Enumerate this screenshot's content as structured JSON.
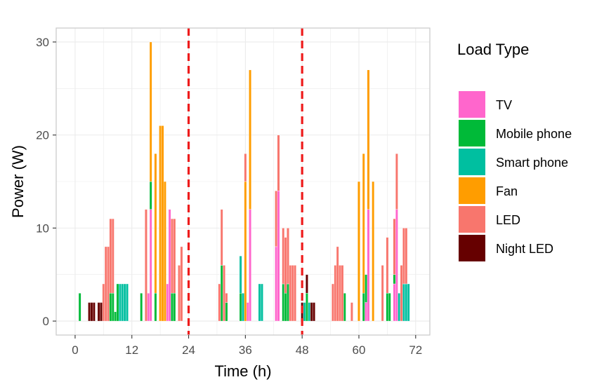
{
  "chart_data": {
    "type": "bar",
    "stacked": true,
    "title": "",
    "xlabel": "Time (h)",
    "ylabel": "Power (W)",
    "xlim": [
      -4,
      75
    ],
    "ylim": [
      -1.5,
      31.5
    ],
    "x_ticks": [
      0,
      12,
      24,
      36,
      48,
      60,
      72
    ],
    "y_ticks": [
      0,
      10,
      20,
      30
    ],
    "grid": true,
    "legend_title": "Load Type",
    "legend_position": "right",
    "vlines": [
      24,
      48
    ],
    "vline_color": "#ee1c1c",
    "series": [
      {
        "name": "TV",
        "color": "#ff66cc",
        "points": [
          [
            15.5,
            3
          ],
          [
            16,
            12
          ],
          [
            19.5,
            4
          ],
          [
            20,
            12
          ],
          [
            30.5,
            0
          ],
          [
            36.5,
            2
          ],
          [
            37,
            12
          ],
          [
            42.5,
            8
          ],
          [
            43,
            14
          ],
          [
            61.5,
            2
          ],
          [
            62,
            12
          ],
          [
            67.5,
            4
          ],
          [
            68,
            12
          ]
        ]
      },
      {
        "name": "Mobile phone",
        "color": "#00ba38",
        "points": [
          [
            1,
            3
          ],
          [
            7.5,
            3
          ],
          [
            8,
            3
          ],
          [
            8.5,
            1
          ],
          [
            9,
            4
          ],
          [
            14,
            3
          ],
          [
            16,
            3
          ],
          [
            17,
            3
          ],
          [
            20.5,
            3
          ],
          [
            21,
            3
          ],
          [
            31,
            6
          ],
          [
            32,
            2
          ],
          [
            35,
            3
          ],
          [
            44,
            4
          ],
          [
            44.5,
            3
          ],
          [
            45,
            4
          ],
          [
            49,
            3
          ],
          [
            57,
            3
          ],
          [
            61,
            3
          ],
          [
            61.5,
            3
          ],
          [
            66,
            3
          ],
          [
            66.5,
            3
          ],
          [
            67.5,
            1
          ]
        ]
      },
      {
        "name": "Smart phone",
        "color": "#00bfa0",
        "points": [
          [
            9.5,
            4
          ],
          [
            10,
            4
          ],
          [
            10.5,
            4
          ],
          [
            11,
            4
          ],
          [
            35,
            4
          ],
          [
            35.5,
            3
          ],
          [
            39,
            4
          ],
          [
            39.5,
            4
          ],
          [
            48.5,
            2
          ],
          [
            49.5,
            2
          ],
          [
            68.5,
            3
          ],
          [
            69.5,
            4
          ],
          [
            70,
            4
          ],
          [
            70.5,
            4
          ]
        ]
      },
      {
        "name": "Fan",
        "color": "#ff9d00",
        "points": [
          [
            16,
            15
          ],
          [
            17,
            15
          ],
          [
            18,
            21
          ],
          [
            18.5,
            21
          ],
          [
            19,
            15
          ],
          [
            36,
            15
          ],
          [
            37,
            15
          ],
          [
            60,
            15
          ],
          [
            61,
            15
          ],
          [
            62,
            15
          ],
          [
            63,
            15
          ]
        ]
      },
      {
        "name": "LED",
        "color": "#f8766d",
        "points": [
          [
            6,
            4
          ],
          [
            6.5,
            8
          ],
          [
            7,
            8
          ],
          [
            7.5,
            8
          ],
          [
            8,
            8
          ],
          [
            15,
            12
          ],
          [
            20.5,
            8
          ],
          [
            21,
            8
          ],
          [
            22,
            6
          ],
          [
            22.5,
            8
          ],
          [
            30.5,
            4
          ],
          [
            31,
            6
          ],
          [
            31.5,
            6
          ],
          [
            32,
            1
          ],
          [
            36,
            3
          ],
          [
            42.5,
            6
          ],
          [
            43,
            6
          ],
          [
            44,
            6
          ],
          [
            44.5,
            6
          ],
          [
            45,
            6
          ],
          [
            45.5,
            6
          ],
          [
            46,
            6
          ],
          [
            46.5,
            6
          ],
          [
            54.5,
            4
          ],
          [
            55,
            6
          ],
          [
            55.5,
            8
          ],
          [
            56,
            6
          ],
          [
            56.5,
            6
          ],
          [
            58.5,
            2
          ],
          [
            65,
            6
          ],
          [
            66,
            6
          ],
          [
            67.5,
            6
          ],
          [
            68,
            6
          ],
          [
            69,
            6
          ],
          [
            69.5,
            6
          ],
          [
            70,
            6
          ]
        ]
      },
      {
        "name": "Night LED",
        "color": "#660000",
        "points": [
          [
            3,
            2
          ],
          [
            3.5,
            2
          ],
          [
            4,
            2
          ],
          [
            5,
            2
          ],
          [
            5.5,
            2
          ],
          [
            48,
            2
          ],
          [
            49,
            2
          ],
          [
            50,
            2
          ],
          [
            50.5,
            2
          ]
        ]
      }
    ]
  }
}
